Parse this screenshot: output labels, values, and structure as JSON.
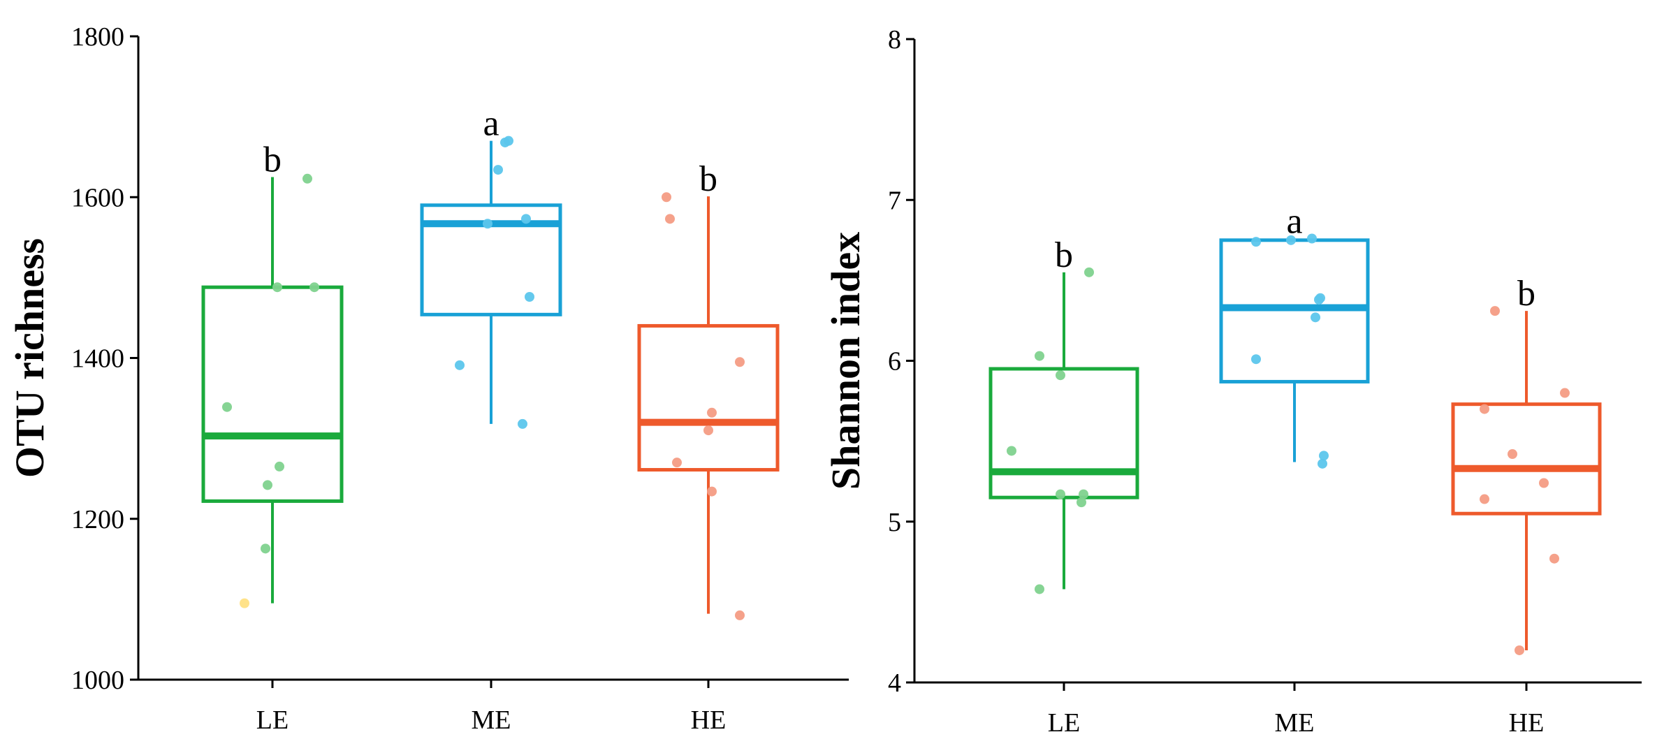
{
  "chart_data": [
    {
      "type": "box",
      "title": "",
      "xlabel": "",
      "ylabel": "OTU richness",
      "ylim": [
        1000,
        1800
      ],
      "yticks": [
        1000,
        1200,
        1400,
        1600,
        1800
      ],
      "grid": false,
      "categories": [
        "LE",
        "ME",
        "HE"
      ],
      "boxes": [
        {
          "category": "LE",
          "whisker_low": 1095,
          "q1": 1222,
          "median": 1303,
          "q3": 1488,
          "whisker_high": 1625,
          "letter": "b",
          "points": [
            [
              -0.4,
              1095
            ],
            [
              -0.1,
              1163
            ],
            [
              -0.07,
              1242
            ],
            [
              0.1,
              1265
            ],
            [
              -0.65,
              1339
            ],
            [
              0.07,
              1488
            ],
            [
              0.6,
              1488
            ],
            [
              0.5,
              1623
            ]
          ]
        },
        {
          "category": "ME",
          "whisker_low": 1318,
          "q1": 1454,
          "median": 1567,
          "q3": 1590,
          "whisker_high": 1670,
          "letter": "a",
          "points": [
            [
              -0.45,
              1391
            ],
            [
              -0.05,
              1567
            ],
            [
              0.45,
              1318
            ],
            [
              0.55,
              1476
            ],
            [
              0.5,
              1573
            ],
            [
              0.1,
              1634
            ],
            [
              0.2,
              1668
            ],
            [
              0.25,
              1670
            ]
          ]
        },
        {
          "category": "HE",
          "whisker_low": 1082,
          "q1": 1261,
          "median": 1320,
          "q3": 1440,
          "whisker_high": 1601,
          "letter": "b",
          "points": [
            [
              0.45,
              1080
            ],
            [
              0.05,
              1234
            ],
            [
              -0.45,
              1270
            ],
            [
              0.0,
              1310
            ],
            [
              0.05,
              1332
            ],
            [
              0.45,
              1395
            ],
            [
              -0.55,
              1573
            ],
            [
              -0.6,
              1600
            ]
          ]
        }
      ]
    },
    {
      "type": "box",
      "title": "",
      "xlabel": "",
      "ylabel": "Shannon index",
      "ylim": [
        4,
        8
      ],
      "yticks": [
        4,
        5,
        6,
        7,
        8
      ],
      "grid": false,
      "categories": [
        "LE",
        "ME",
        "HE"
      ],
      "boxes": [
        {
          "category": "LE",
          "whisker_low": 4.58,
          "q1": 5.15,
          "median": 5.31,
          "q3": 5.95,
          "whisker_high": 6.55,
          "letter": "b",
          "points": [
            [
              -0.35,
              4.58
            ],
            [
              0.25,
              5.12
            ],
            [
              -0.05,
              5.17
            ],
            [
              0.28,
              5.17
            ],
            [
              -0.75,
              5.44
            ],
            [
              -0.05,
              5.91
            ],
            [
              -0.35,
              6.03
            ],
            [
              0.36,
              6.55
            ]
          ]
        },
        {
          "category": "ME",
          "whisker_low": 5.37,
          "q1": 5.87,
          "median": 6.33,
          "q3": 6.75,
          "whisker_high": 6.76,
          "letter": "a",
          "points": [
            [
              -0.55,
              6.01
            ],
            [
              0.4,
              5.36
            ],
            [
              0.42,
              5.41
            ],
            [
              0.3,
              6.27
            ],
            [
              0.35,
              6.38
            ],
            [
              0.37,
              6.39
            ],
            [
              -0.55,
              6.74
            ],
            [
              -0.05,
              6.75
            ],
            [
              0.25,
              6.76
            ]
          ]
        },
        {
          "category": "HE",
          "whisker_low": 4.2,
          "q1": 5.05,
          "median": 5.33,
          "q3": 5.73,
          "whisker_high": 6.31,
          "letter": "b",
          "points": [
            [
              -0.1,
              4.2
            ],
            [
              0.4,
              4.77
            ],
            [
              -0.6,
              5.14
            ],
            [
              0.25,
              5.24
            ],
            [
              -0.2,
              5.42
            ],
            [
              -0.6,
              5.7
            ],
            [
              0.55,
              5.8
            ],
            [
              -0.45,
              6.31
            ]
          ]
        }
      ]
    }
  ],
  "colors": {
    "LE": "#1aaa3c",
    "ME": "#19a1d6",
    "HE": "#ee5a2c",
    "LE_point": "#7fd28e",
    "ME_point": "#5cc6ec",
    "HE_point": "#f49c84",
    "outlier_point": "#ffe083",
    "axis": "#000000"
  }
}
